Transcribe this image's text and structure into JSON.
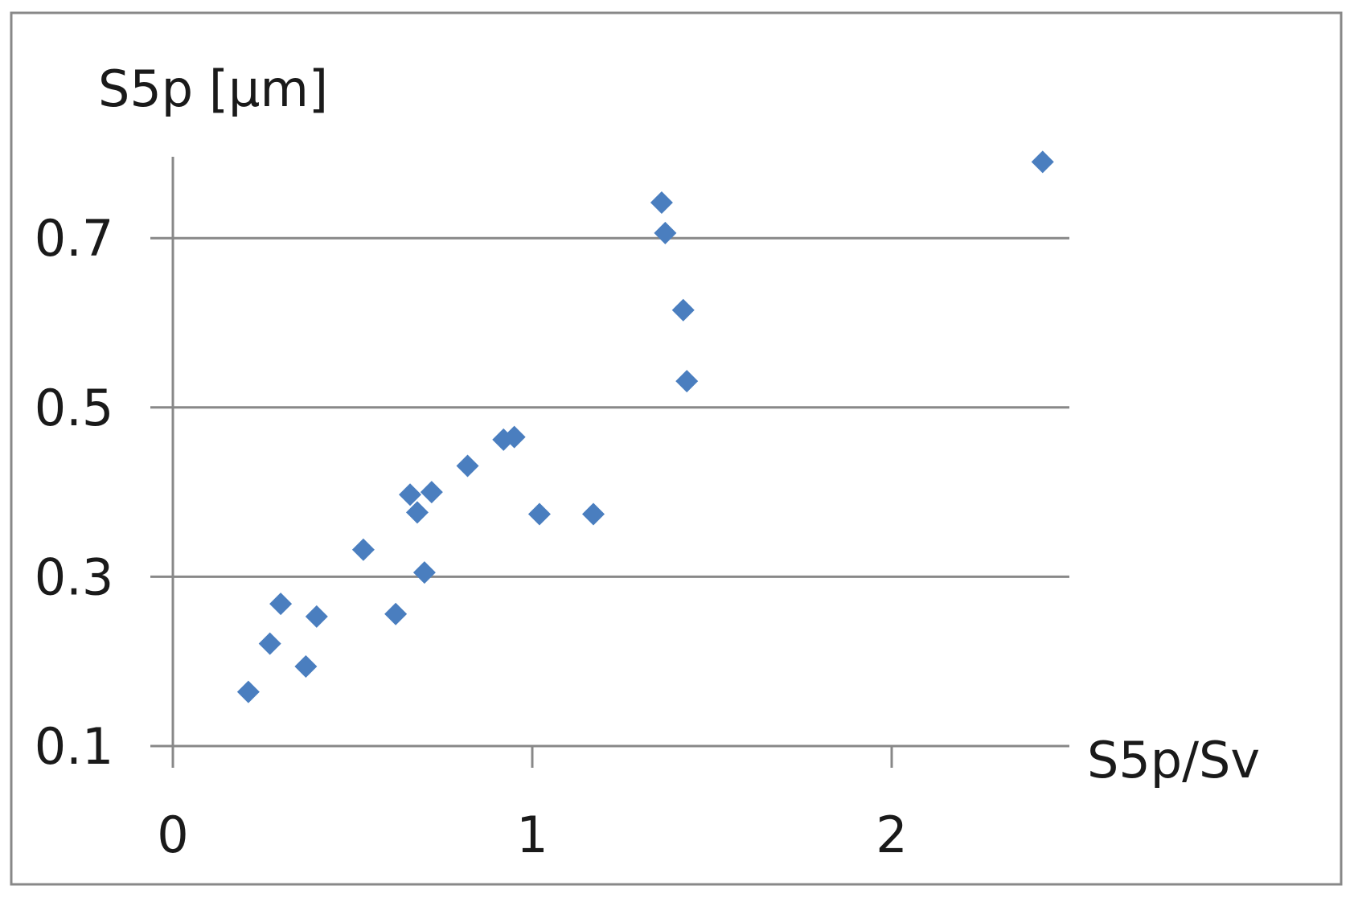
{
  "chart_data": {
    "type": "scatter",
    "title": "",
    "xlabel": "S5p/Sv",
    "ylabel": "S5p [µm]",
    "xlim": [
      0,
      2.5
    ],
    "ylim": [
      0.1,
      0.8
    ],
    "x_ticks": [
      0,
      1,
      2
    ],
    "x_tick_labels": [
      "0",
      "1",
      "2"
    ],
    "y_ticks": [
      0.1,
      0.3,
      0.5,
      0.7
    ],
    "y_tick_labels": [
      "0.1",
      "0.3",
      "0.5",
      "0.7"
    ],
    "grid": {
      "horizontal": true,
      "vertical": false
    },
    "legend": "none",
    "series": [
      {
        "marker": "diamond",
        "color": "#4a7ebf",
        "points": [
          {
            "x": 0.21,
            "y": 0.164
          },
          {
            "x": 0.27,
            "y": 0.221
          },
          {
            "x": 0.3,
            "y": 0.268
          },
          {
            "x": 0.37,
            "y": 0.194
          },
          {
            "x": 0.4,
            "y": 0.253
          },
          {
            "x": 0.53,
            "y": 0.332
          },
          {
            "x": 0.62,
            "y": 0.256
          },
          {
            "x": 0.66,
            "y": 0.397
          },
          {
            "x": 0.68,
            "y": 0.376
          },
          {
            "x": 0.7,
            "y": 0.305
          },
          {
            "x": 0.72,
            "y": 0.4
          },
          {
            "x": 0.82,
            "y": 0.431
          },
          {
            "x": 0.92,
            "y": 0.462
          },
          {
            "x": 0.95,
            "y": 0.465
          },
          {
            "x": 1.02,
            "y": 0.374
          },
          {
            "x": 1.17,
            "y": 0.374
          },
          {
            "x": 1.36,
            "y": 0.742
          },
          {
            "x": 1.37,
            "y": 0.706
          },
          {
            "x": 1.42,
            "y": 0.615
          },
          {
            "x": 1.43,
            "y": 0.531
          },
          {
            "x": 2.42,
            "y": 0.79
          }
        ]
      }
    ]
  },
  "colors": {
    "marker": "#4a7ebf",
    "gridline": "#888888",
    "axis": "#888888",
    "frame": "#888888"
  }
}
